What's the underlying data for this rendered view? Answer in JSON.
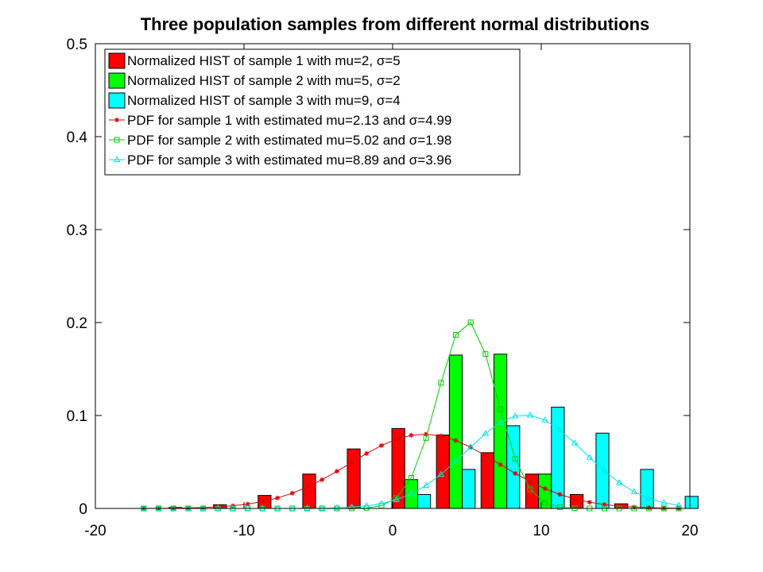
{
  "chart_data": {
    "type": "bar",
    "title": "Three population samples from different normal distributions",
    "xlabel": "",
    "ylabel": "",
    "xlim": [
      -20,
      20
    ],
    "ylim": [
      0,
      0.5
    ],
    "x_ticks": [
      -20,
      -10,
      0,
      10,
      20
    ],
    "y_ticks": [
      0,
      0.1,
      0.2,
      0.3,
      0.4,
      0.5
    ],
    "grid": false,
    "legend_position": "top-left",
    "bar_groups": {
      "centers": [
        -16.75,
        -13.75,
        -10.75,
        -7.75,
        -4.75,
        -1.75,
        1.25,
        4.25,
        7.25,
        10.25,
        13.25,
        16.25,
        19.25
      ],
      "group_width": 2.6
    },
    "histograms": [
      {
        "name": "Normalized HIST of sample 1 with mu=2, σ=5",
        "color": "#ff0000",
        "values": [
          0.0,
          0.001,
          0.004,
          0.014,
          0.037,
          0.064,
          0.086,
          0.079,
          0.06,
          0.037,
          0.015,
          0.005,
          0.0
        ]
      },
      {
        "name": "Normalized HIST of sample 2 with mu=5, σ=2",
        "color": "#00ff00",
        "values": [
          0.0,
          0.0,
          0.0,
          0.0,
          0.0,
          0.0,
          0.031,
          0.165,
          0.166,
          0.037,
          0.0,
          0.0,
          0.0
        ]
      },
      {
        "name": "Normalized HIST of sample 3 with mu=9, σ=4",
        "color": "#00ffff",
        "values": [
          0.0,
          0.0,
          0.0,
          0.0,
          0.0,
          0.0,
          0.015,
          0.042,
          0.089,
          0.109,
          0.081,
          0.042,
          0.013
        ]
      }
    ],
    "pdfs": [
      {
        "name": "PDF for sample 1 with estimated mu=2.13 and σ=4.99",
        "color": "#e00000",
        "marker": "star",
        "mu": 2.13,
        "sigma": 4.99
      },
      {
        "name": "PDF for sample 2 with estimated mu=5.02 and σ=1.98",
        "color": "#00cc00",
        "marker": "square",
        "mu": 5.02,
        "sigma": 1.98
      },
      {
        "name": "PDF for sample 3 with estimated mu=8.89 and σ=3.96",
        "color": "#00e5e5",
        "marker": "triangle",
        "mu": 8.89,
        "sigma": 3.96
      }
    ],
    "pdf_x": [
      -16.75,
      -15.75,
      -14.75,
      -13.75,
      -12.75,
      -11.75,
      -10.75,
      -9.75,
      -8.75,
      -7.75,
      -6.75,
      -5.75,
      -4.75,
      -3.75,
      -2.75,
      -1.75,
      -0.75,
      0.25,
      1.25,
      2.25,
      3.25,
      4.25,
      5.25,
      6.25,
      7.25,
      8.25,
      9.25,
      10.25,
      11.25,
      12.25,
      13.25,
      14.25,
      15.25,
      16.25,
      17.25,
      18.25,
      19.25
    ]
  }
}
